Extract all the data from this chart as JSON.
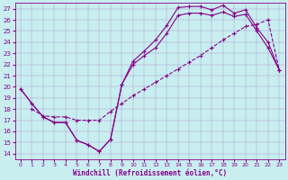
{
  "xlabel": "Windchill (Refroidissement éolien,°C)",
  "bg_color": "#c8eef0",
  "line_color": "#880088",
  "xlim": [
    -0.5,
    23.5
  ],
  "ylim": [
    13.5,
    27.5
  ],
  "xticks": [
    0,
    1,
    2,
    3,
    4,
    5,
    6,
    7,
    8,
    9,
    10,
    11,
    12,
    13,
    14,
    15,
    16,
    17,
    18,
    19,
    20,
    21,
    22,
    23
  ],
  "yticks": [
    14,
    15,
    16,
    17,
    18,
    19,
    20,
    21,
    22,
    23,
    24,
    25,
    26,
    27
  ],
  "curve1_x": [
    0,
    1,
    2,
    3,
    4,
    5,
    6,
    7,
    8,
    9,
    10,
    11,
    12,
    13,
    14,
    15,
    16,
    17,
    18,
    19,
    20,
    21,
    22,
    23
  ],
  "curve1_y": [
    19.8,
    18.5,
    17.3,
    16.8,
    16.8,
    15.2,
    14.8,
    14.2,
    15.3,
    20.2,
    22.3,
    23.2,
    24.2,
    25.5,
    27.1,
    27.2,
    27.2,
    26.9,
    27.3,
    26.6,
    26.9,
    25.3,
    24.0,
    21.5
  ],
  "curve2_x": [
    0,
    1,
    2,
    3,
    4,
    5,
    6,
    7,
    8,
    9,
    10,
    11,
    12,
    13,
    14,
    15,
    16,
    17,
    18,
    19,
    20,
    21,
    22,
    23
  ],
  "curve2_y": [
    19.8,
    18.5,
    17.3,
    16.8,
    16.8,
    15.2,
    14.8,
    14.2,
    15.3,
    20.2,
    22.0,
    22.8,
    23.5,
    24.8,
    26.4,
    26.6,
    26.6,
    26.4,
    26.7,
    26.3,
    26.5,
    25.0,
    23.5,
    21.5
  ],
  "curve3_x": [
    1,
    2,
    3,
    4,
    5,
    6,
    7,
    8,
    9,
    10,
    11,
    12,
    13,
    14,
    15,
    16,
    17,
    18,
    19,
    20,
    21,
    22,
    23
  ],
  "curve3_y": [
    18.0,
    17.4,
    17.3,
    17.3,
    17.0,
    17.0,
    17.0,
    17.8,
    18.5,
    19.2,
    19.8,
    20.4,
    21.0,
    21.6,
    22.2,
    22.8,
    23.5,
    24.2,
    24.8,
    25.4,
    25.6,
    26.0,
    21.5
  ]
}
